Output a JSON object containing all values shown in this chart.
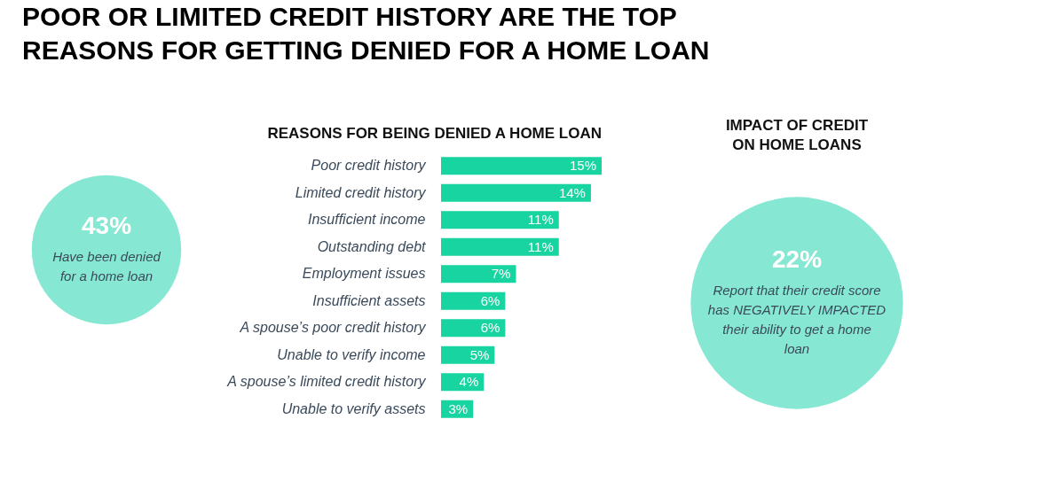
{
  "chart_data": [
    {
      "type": "other",
      "title": "43%",
      "annotations": [
        "Have been denied",
        "for a home loan"
      ]
    },
    {
      "type": "bar",
      "orientation": "horizontal",
      "title": "POOR OR LIMITED CREDIT HISTORY ARE THE TOP REASONS FOR GETTING DENIED FOR A HOME LOAN",
      "subtitle": "REASONS FOR BEING DENIED A HOME LOAN",
      "categories": [
        "Poor credit history",
        "Limited credit history",
        "Insufficient income",
        "Outstanding debt",
        "Employment issues",
        "Insufficient assets",
        "A spouse’s poor credit history",
        "Unable to verify income",
        "A spouse’s limited credit history",
        "Unable to verify assets"
      ],
      "values": [
        15,
        14,
        11,
        11,
        7,
        6,
        6,
        5,
        4,
        3
      ],
      "value_labels": [
        "15%",
        "14%",
        "11%",
        "11%",
        "7%",
        "6%",
        "6%",
        "5%",
        "4%",
        "3%"
      ],
      "color": "#17d4a0",
      "grid": false,
      "legend": false
    },
    {
      "type": "other",
      "title": "IMPACT OF CREDIT ON HOME LOANS",
      "subtitle": "22%",
      "annotations": [
        "Report that their credit score",
        "has NEGATIVELY IMPACTED",
        "their ability to get a home",
        "loan"
      ]
    }
  ]
}
